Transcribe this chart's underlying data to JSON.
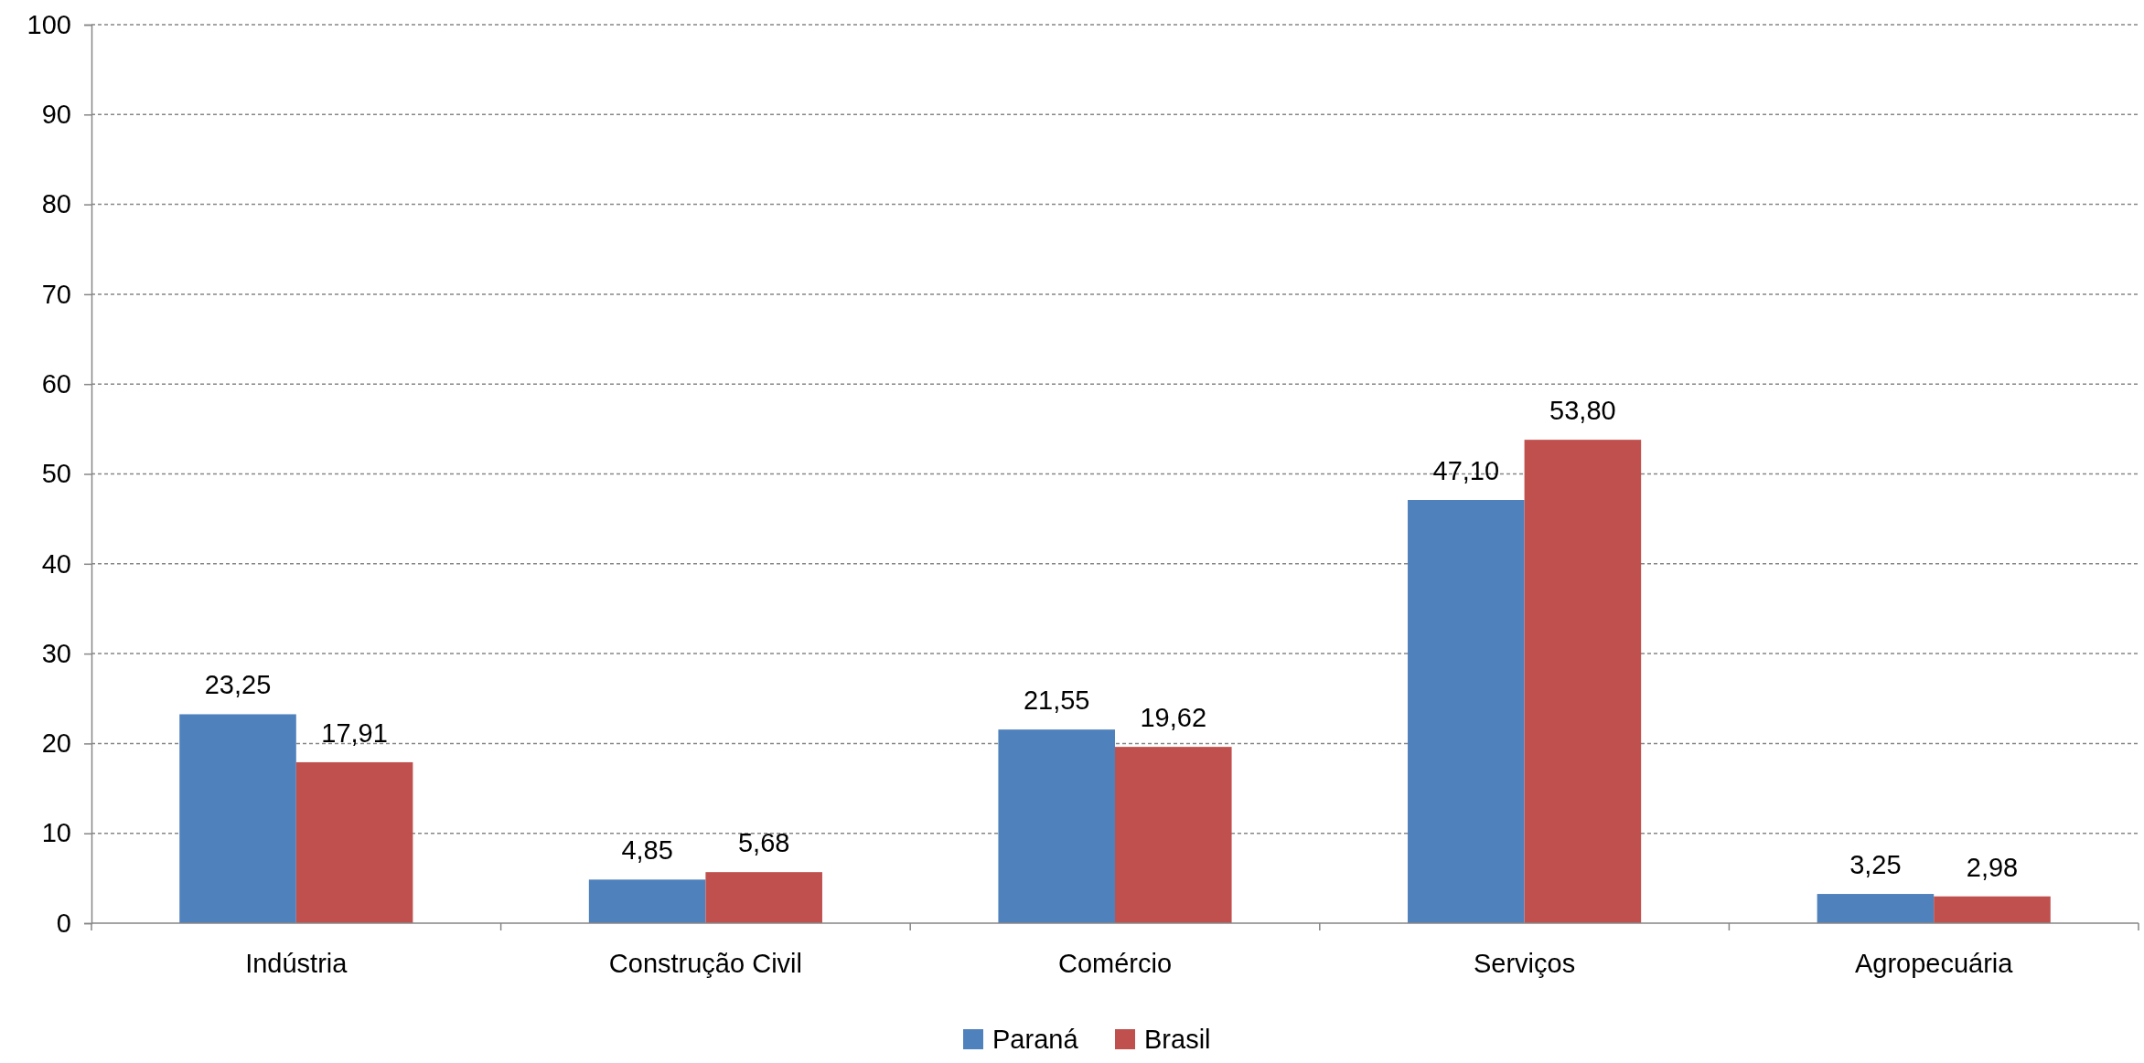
{
  "chart_data": {
    "type": "bar",
    "categories": [
      "Indústria",
      "Construção Civil",
      "Comércio",
      "Serviços",
      "Agropecuária"
    ],
    "series": [
      {
        "name": "Paraná",
        "color": "#4f81bd",
        "values": [
          23.25,
          4.85,
          21.55,
          47.1,
          3.25
        ],
        "value_labels": [
          "23,25",
          "4,85",
          "21,55",
          "47,10",
          "3,25"
        ]
      },
      {
        "name": "Brasil",
        "color": "#c0504d",
        "values": [
          17.91,
          5.68,
          19.62,
          53.8,
          2.98
        ],
        "value_labels": [
          "17,91",
          "5,68",
          "19,62",
          "53,80",
          "2,98"
        ]
      }
    ],
    "ylim": [
      0,
      100
    ],
    "yticks": [
      0,
      10,
      20,
      30,
      40,
      50,
      60,
      70,
      80,
      90,
      100
    ],
    "grid": "y",
    "legend": "bottom"
  }
}
